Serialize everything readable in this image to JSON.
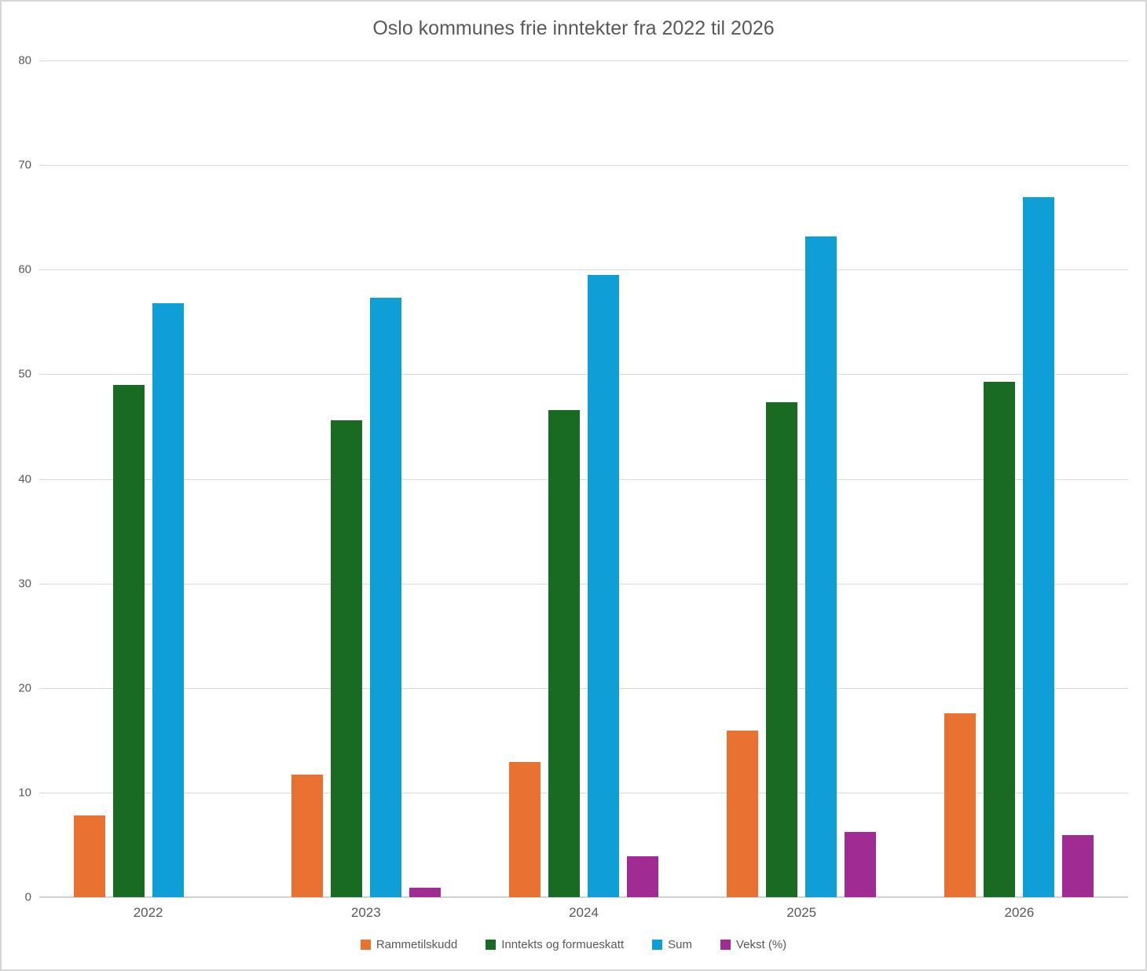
{
  "title": "Oslo kommunes frie inntekter fra 2022 til 2026",
  "colors": {
    "text": "#595959",
    "gridline": "#d9d9d9",
    "axis_line": "#d2d2d2",
    "frame_border": "#d6d6d6",
    "background": "#ffffff"
  },
  "chart_data": {
    "type": "bar",
    "title": "Oslo kommunes frie inntekter fra 2022 til 2026",
    "categories": [
      "2022",
      "2023",
      "2024",
      "2025",
      "2026"
    ],
    "series": [
      {
        "name": "Rammetilskudd",
        "color": "#E97132",
        "values": [
          7.8,
          11.7,
          12.9,
          15.9,
          17.6
        ]
      },
      {
        "name": "Inntekts og formueskatt",
        "color": "#196B24",
        "values": [
          49.0,
          45.6,
          46.6,
          47.3,
          49.3
        ]
      },
      {
        "name": "Sum",
        "color": "#0F9ED5",
        "values": [
          56.8,
          57.3,
          59.5,
          63.2,
          66.9
        ]
      },
      {
        "name": "Vekst (%)",
        "color": "#A02B93",
        "values": [
          null,
          0.9,
          3.9,
          6.2,
          5.9
        ]
      }
    ],
    "xlabel": "",
    "ylabel": "",
    "ylim": [
      0,
      80
    ],
    "yticks": [
      0,
      10,
      20,
      30,
      40,
      50,
      60,
      70,
      80
    ],
    "grid": true,
    "legend_position": "bottom"
  }
}
